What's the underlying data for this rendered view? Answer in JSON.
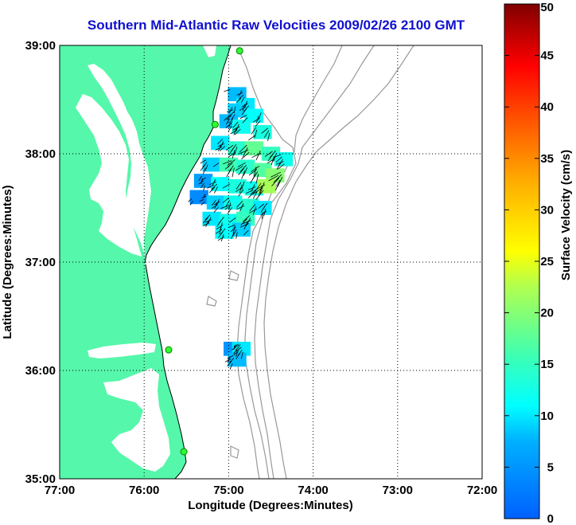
{
  "title": "Southern Mid-Atlantic Raw Velocities 2009/02/26 2100 GMT",
  "map": {
    "xlabel": "Longitude (Degrees:Minutes)",
    "ylabel": "Latitude (Degrees:Minutes)",
    "lon_range": [
      -77,
      -72
    ],
    "lat_range": [
      35,
      39
    ],
    "lon_ticks": [
      {
        "value": -77,
        "label": "77:00"
      },
      {
        "value": -76,
        "label": "76:00"
      },
      {
        "value": -75,
        "label": "75:00"
      },
      {
        "value": -74,
        "label": "74:00"
      },
      {
        "value": -73,
        "label": "73:00"
      },
      {
        "value": -72,
        "label": "72:00"
      }
    ],
    "lat_ticks": [
      {
        "value": 39,
        "label": "39:00"
      },
      {
        "value": 38,
        "label": "38:00"
      },
      {
        "value": 37,
        "label": "37:00"
      },
      {
        "value": 36,
        "label": "36:00"
      },
      {
        "value": 35,
        "label": "35:00"
      }
    ],
    "land_color": "#55f7aa",
    "bathymetry_color": "#999999",
    "grid": true,
    "stations": [
      {
        "lon": -74.87,
        "lat": 38.95
      },
      {
        "lon": -75.16,
        "lat": 38.27
      },
      {
        "lon": -75.71,
        "lat": 36.19
      },
      {
        "lon": -75.53,
        "lat": 35.25
      }
    ]
  },
  "colorbar": {
    "label": "Surface Velocity (cm/s)",
    "min": 0,
    "max": 50,
    "ticks": [
      {
        "value": 0,
        "label": "0"
      },
      {
        "value": 5,
        "label": "5"
      },
      {
        "value": 10,
        "label": "10"
      },
      {
        "value": 15,
        "label": "15"
      },
      {
        "value": 20,
        "label": "20"
      },
      {
        "value": 25,
        "label": "25"
      },
      {
        "value": 30,
        "label": "30"
      },
      {
        "value": 35,
        "label": "35"
      },
      {
        "value": 40,
        "label": "40"
      },
      {
        "value": 45,
        "label": "45"
      },
      {
        "value": 50,
        "label": "50"
      }
    ]
  },
  "chart_data": {
    "type": "heatmap",
    "title": "Southern Mid-Atlantic Raw Velocities 2009/02/26 2100 GMT",
    "xlabel": "Longitude (Degrees:Minutes)",
    "ylabel": "Latitude (Degrees:Minutes)",
    "xlim": [
      -77,
      -72
    ],
    "ylim": [
      35,
      39
    ],
    "colorbar_label": "Surface Velocity (cm/s)",
    "colorbar_range": [
      0,
      50
    ],
    "cells": [
      {
        "lon": -74.9,
        "lat": 38.55,
        "v": 8
      },
      {
        "lon": -74.8,
        "lat": 38.45,
        "v": 10
      },
      {
        "lon": -74.9,
        "lat": 38.4,
        "v": 9
      },
      {
        "lon": -74.7,
        "lat": 38.35,
        "v": 11
      },
      {
        "lon": -75.0,
        "lat": 38.3,
        "v": 8
      },
      {
        "lon": -74.85,
        "lat": 38.25,
        "v": 12
      },
      {
        "lon": -74.6,
        "lat": 38.2,
        "v": 13
      },
      {
        "lon": -75.1,
        "lat": 38.1,
        "v": 10
      },
      {
        "lon": -74.9,
        "lat": 38.05,
        "v": 14
      },
      {
        "lon": -74.7,
        "lat": 38.05,
        "v": 18
      },
      {
        "lon": -74.5,
        "lat": 38.0,
        "v": 15
      },
      {
        "lon": -74.35,
        "lat": 37.95,
        "v": 12
      },
      {
        "lon": -75.2,
        "lat": 37.9,
        "v": 9
      },
      {
        "lon": -75.0,
        "lat": 37.9,
        "v": 16
      },
      {
        "lon": -74.8,
        "lat": 37.88,
        "v": 14
      },
      {
        "lon": -74.6,
        "lat": 37.85,
        "v": 17
      },
      {
        "lon": -74.45,
        "lat": 37.8,
        "v": 20
      },
      {
        "lon": -75.3,
        "lat": 37.75,
        "v": 6
      },
      {
        "lon": -75.1,
        "lat": 37.72,
        "v": 11
      },
      {
        "lon": -74.9,
        "lat": 37.7,
        "v": 13
      },
      {
        "lon": -74.7,
        "lat": 37.68,
        "v": 12
      },
      {
        "lon": -74.55,
        "lat": 37.7,
        "v": 22
      },
      {
        "lon": -75.35,
        "lat": 37.6,
        "v": 4
      },
      {
        "lon": -75.15,
        "lat": 37.55,
        "v": 9
      },
      {
        "lon": -74.95,
        "lat": 37.55,
        "v": 12
      },
      {
        "lon": -74.75,
        "lat": 37.52,
        "v": 14
      },
      {
        "lon": -74.6,
        "lat": 37.5,
        "v": 10
      },
      {
        "lon": -75.2,
        "lat": 37.4,
        "v": 10
      },
      {
        "lon": -75.0,
        "lat": 37.38,
        "v": 12
      },
      {
        "lon": -74.8,
        "lat": 37.4,
        "v": 15
      },
      {
        "lon": -75.05,
        "lat": 37.28,
        "v": 11
      },
      {
        "lon": -74.85,
        "lat": 37.3,
        "v": 9
      },
      {
        "lon": -74.95,
        "lat": 36.2,
        "v": 5
      },
      {
        "lon": -74.85,
        "lat": 36.2,
        "v": 10
      },
      {
        "lon": -74.9,
        "lat": 36.1,
        "v": 8
      }
    ]
  }
}
